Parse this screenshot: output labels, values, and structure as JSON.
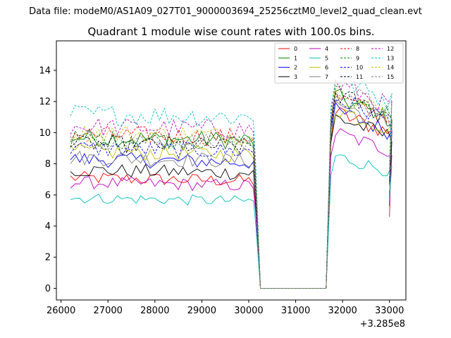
{
  "suptitle": "Data file: modeM0/AS1A09_027T01_9000003694_25256cztM0_level2_quad_clean.evt",
  "chart_data": {
    "type": "line",
    "title": "Quadrant 1 module wise count rates with 100.0s bins.",
    "xlabel": "",
    "ylabel": "",
    "x_offset_label": "+3.285e8",
    "xlim": [
      25900,
      33350
    ],
    "ylim": [
      -0.75,
      15.9
    ],
    "xticks": [
      26000,
      27000,
      28000,
      29000,
      30000,
      31000,
      32000,
      33000
    ],
    "xtick_labels": [
      "26000",
      "27000",
      "28000",
      "29000",
      "30000",
      "31000",
      "32000",
      "33000"
    ],
    "yticks": [
      0,
      2,
      4,
      6,
      8,
      10,
      12,
      14
    ],
    "ytick_labels": [
      "0",
      "2",
      "4",
      "6",
      "8",
      "10",
      "12",
      "14"
    ],
    "gap_segment": {
      "x": [
        30150,
        30250,
        31650,
        31750
      ],
      "y_at_gap": 0.0
    },
    "legend_position": "top-right",
    "series": [
      {
        "name": "0",
        "color": "#ff0000",
        "dashed": false,
        "level1": 7.1,
        "level2": 11.3,
        "end": 4.6
      },
      {
        "name": "1",
        "color": "#008000",
        "dashed": false,
        "level1": 9.7,
        "level2": 12.3,
        "end": 6.0
      },
      {
        "name": "2",
        "color": "#0000ff",
        "dashed": false,
        "level1": 8.3,
        "level2": 11.4,
        "end": 5.3
      },
      {
        "name": "3",
        "color": "#000000",
        "dashed": false,
        "level1": 7.6,
        "level2": 11.0,
        "end": 5.8
      },
      {
        "name": "4",
        "color": "#bf00bf",
        "dashed": false,
        "level1": 6.8,
        "level2": 10.0,
        "end": 5.5
      },
      {
        "name": "5",
        "color": "#00bfbf",
        "dashed": false,
        "level1": 5.8,
        "level2": 8.5,
        "end": 5.8
      },
      {
        "name": "6",
        "color": "#bfbf00",
        "dashed": false,
        "level1": 8.8,
        "level2": 11.6,
        "end": 6.3
      },
      {
        "name": "7",
        "color": "#808080",
        "dashed": false,
        "level1": 8.4,
        "level2": 11.9,
        "end": 6.6
      },
      {
        "name": "8",
        "color": "#ff0000",
        "dashed": true,
        "level1": 9.9,
        "level2": 12.3,
        "end": 6.8
      },
      {
        "name": "9",
        "color": "#008000",
        "dashed": true,
        "level1": 9.6,
        "level2": 12.6,
        "end": 6.9
      },
      {
        "name": "10",
        "color": "#0000ff",
        "dashed": true,
        "level1": 9.0,
        "level2": 12.2,
        "end": 6.7
      },
      {
        "name": "11",
        "color": "#000000",
        "dashed": true,
        "level1": 9.3,
        "level2": 12.5,
        "end": 7.0
      },
      {
        "name": "12",
        "color": "#bf00bf",
        "dashed": true,
        "level1": 10.4,
        "level2": 13.2,
        "end": 7.5
      },
      {
        "name": "13",
        "color": "#00bfbf",
        "dashed": true,
        "level1": 11.2,
        "level2": 13.6,
        "end": 8.0
      },
      {
        "name": "14",
        "color": "#bfbf00",
        "dashed": true,
        "level1": 10.0,
        "level2": 12.6,
        "end": 7.2
      },
      {
        "name": "15",
        "color": "#808080",
        "dashed": true,
        "level1": 9.5,
        "level2": 12.9,
        "end": 7.3
      }
    ]
  }
}
